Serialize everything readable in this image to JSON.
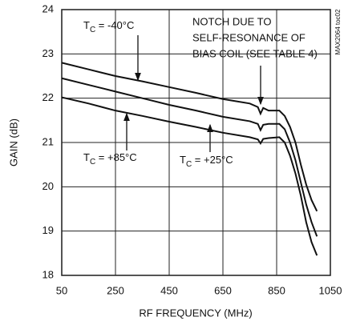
{
  "chart_data": {
    "type": "line",
    "x_label": "RF FREQUENCY (MHz)",
    "y_label": "GAIN (dB)",
    "xlim": [
      50,
      1050
    ],
    "xticks": [
      50,
      250,
      450,
      650,
      850,
      1050
    ],
    "ylim": [
      18,
      24
    ],
    "yticks": [
      18,
      19,
      20,
      21,
      22,
      23,
      24
    ],
    "grid": true,
    "x": [
      50,
      150,
      250,
      350,
      450,
      550,
      650,
      750,
      780,
      790,
      800,
      820,
      860,
      880,
      900,
      920,
      940,
      960,
      980,
      1000
    ],
    "series": [
      {
        "color": "#111111",
        "values": [
          22.8,
          22.65,
          22.5,
          22.38,
          22.25,
          22.12,
          21.98,
          21.88,
          21.8,
          21.65,
          21.78,
          21.72,
          21.72,
          21.6,
          21.35,
          21.0,
          20.5,
          20.05,
          19.7,
          19.45
        ]
      },
      {
        "color": "#111111",
        "values": [
          22.45,
          22.3,
          22.15,
          22.0,
          21.85,
          21.72,
          21.58,
          21.48,
          21.42,
          21.28,
          21.4,
          21.42,
          21.42,
          21.3,
          21.0,
          20.6,
          20.1,
          19.6,
          19.2,
          18.88
        ]
      },
      {
        "color": "#111111",
        "values": [
          22.02,
          21.88,
          21.72,
          21.6,
          21.47,
          21.35,
          21.22,
          21.12,
          21.07,
          20.98,
          21.08,
          21.1,
          21.12,
          21.0,
          20.7,
          20.3,
          19.8,
          19.2,
          18.75,
          18.45
        ]
      }
    ],
    "annotations": [
      {
        "main": "T",
        "sub": "C",
        "text": " = -40°C"
      },
      {
        "main": "T",
        "sub": "C",
        "text": " = +85°C"
      },
      {
        "main": "T",
        "sub": "C",
        "text": " = +25°C"
      },
      {
        "lines": [
          "NOTCH DUE TO",
          "SELF-RESONANCE OF",
          "BIAS COIL (SEE TABLE 4)"
        ]
      }
    ],
    "watermark": "MAX2064 toc02"
  }
}
